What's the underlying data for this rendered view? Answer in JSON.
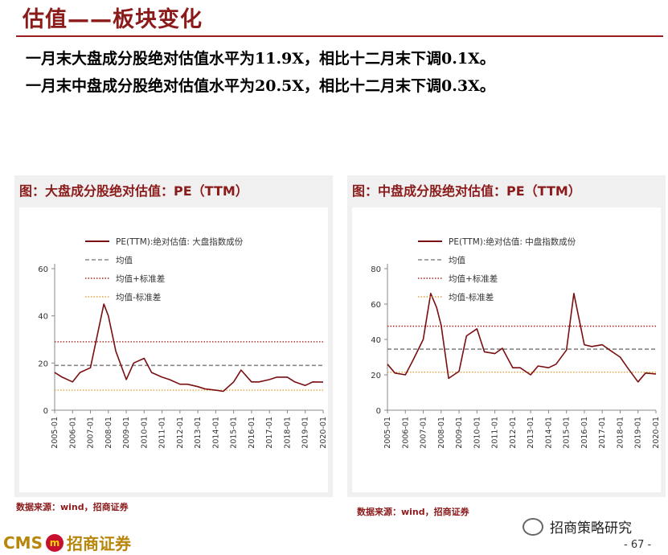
{
  "header": {
    "title": "估值——板块变化",
    "line1": "一月末大盘成分股绝对估值水平为11.9X，相比十二月末下调0.1X。",
    "line2": "一月末中盘成分股绝对估值水平为20.5X，相比十二月末下调0.3X。"
  },
  "colors": {
    "brand": "#8b1a1a",
    "pe_line": "#7a0f12",
    "mean_line": "#888888",
    "plus_sd": "#b22222",
    "minus_sd": "#e6a23c"
  },
  "charts": [
    {
      "panel_title": "图：大盘成分股绝对估值：PE（TTM）",
      "legend": [
        "PE(TTM):绝对估值: 大盘指数成份",
        "均值",
        "均值+标准差",
        "均值-标准差"
      ],
      "source": "数据来源：wind，招商证券"
    },
    {
      "panel_title": "图：中盘成分股绝对估值：PE（TTM）",
      "legend": [
        "PE(TTM):绝对估值: 中盘指数成份",
        "均值",
        "均值+标准差",
        "均值-标准差"
      ],
      "source": "数据来源：wind，招商证券"
    }
  ],
  "chart_data": [
    {
      "type": "line",
      "x": [
        "2005-01",
        "2005-06",
        "2006-01",
        "2006-06",
        "2007-01",
        "2007-06",
        "2007-10",
        "2008-01",
        "2008-06",
        "2009-01",
        "2009-06",
        "2010-01",
        "2010-06",
        "2011-01",
        "2011-06",
        "2012-01",
        "2012-06",
        "2013-01",
        "2013-06",
        "2014-01",
        "2014-06",
        "2015-01",
        "2015-06",
        "2016-01",
        "2016-06",
        "2017-01",
        "2017-06",
        "2018-01",
        "2018-06",
        "2019-01",
        "2019-06",
        "2020-01"
      ],
      "series": [
        {
          "name": "PE(TTM):绝对估值: 大盘指数成份",
          "values": [
            16,
            14,
            12,
            16,
            18,
            33,
            45,
            40,
            25,
            13,
            20,
            22,
            16,
            14,
            13,
            11,
            11,
            10,
            9,
            8.5,
            8,
            12,
            17,
            12,
            12,
            13,
            14,
            14,
            12,
            10.5,
            12,
            11.9
          ]
        },
        {
          "values": [
            19,
            19,
            19,
            19,
            19,
            19,
            19,
            19,
            19,
            19,
            19,
            19,
            19,
            19,
            19,
            19,
            19,
            19,
            19,
            19,
            19,
            19,
            19,
            19,
            19,
            19,
            19,
            19,
            19,
            19,
            19,
            19
          ]
        },
        {
          "values": [
            29,
            29,
            29,
            29,
            29,
            29,
            29,
            29,
            29,
            29,
            29,
            29,
            29,
            29,
            29,
            29,
            29,
            29,
            29,
            29,
            29,
            29,
            29,
            29,
            29,
            29,
            29,
            29,
            29,
            29,
            29,
            29
          ]
        },
        {
          "values": [
            8.5,
            8.5,
            8.5,
            8.5,
            8.5,
            8.5,
            8.5,
            8.5,
            8.5,
            8.5,
            8.5,
            8.5,
            8.5,
            8.5,
            8.5,
            8.5,
            8.5,
            8.5,
            8.5,
            8.5,
            8.5,
            8.5,
            8.5,
            8.5,
            8.5,
            8.5,
            8.5,
            8.5,
            8.5,
            8.5,
            8.5,
            8.5
          ]
        }
      ],
      "x_ticks": [
        "2005-01",
        "2006-01",
        "2007-01",
        "2008-01",
        "2009-01",
        "2010-01",
        "2011-01",
        "2012-01",
        "2013-01",
        "2014-01",
        "2015-01",
        "2016-01",
        "2017-01",
        "2018-01",
        "2019-01",
        "2020-01"
      ],
      "y_ticks": [
        0,
        20,
        40,
        60
      ],
      "ylim": [
        0,
        60
      ]
    },
    {
      "type": "line",
      "x": [
        "2005-01",
        "2005-06",
        "2006-01",
        "2006-06",
        "2007-01",
        "2007-06",
        "2007-10",
        "2008-01",
        "2008-06",
        "2009-01",
        "2009-06",
        "2010-01",
        "2010-06",
        "2011-01",
        "2011-06",
        "2012-01",
        "2012-06",
        "2013-01",
        "2013-06",
        "2014-01",
        "2014-06",
        "2015-01",
        "2015-06",
        "2016-01",
        "2016-06",
        "2017-01",
        "2017-06",
        "2018-01",
        "2018-06",
        "2019-01",
        "2019-06",
        "2020-01"
      ],
      "series": [
        {
          "name": "PE(TTM):绝对估值: 中盘指数成份",
          "values": [
            26,
            21,
            20,
            28,
            40,
            66,
            58,
            48,
            18,
            22,
            42,
            46,
            33,
            32,
            35,
            24,
            24,
            20,
            25,
            24,
            26,
            34,
            66,
            37,
            36,
            37,
            34,
            30,
            24,
            16,
            21,
            20.5
          ]
        },
        {
          "values": [
            34.5,
            34.5,
            34.5,
            34.5,
            34.5,
            34.5,
            34.5,
            34.5,
            34.5,
            34.5,
            34.5,
            34.5,
            34.5,
            34.5,
            34.5,
            34.5,
            34.5,
            34.5,
            34.5,
            34.5,
            34.5,
            34.5,
            34.5,
            34.5,
            34.5,
            34.5,
            34.5,
            34.5,
            34.5,
            34.5,
            34.5,
            34.5
          ]
        },
        {
          "values": [
            47.5,
            47.5,
            47.5,
            47.5,
            47.5,
            47.5,
            47.5,
            47.5,
            47.5,
            47.5,
            47.5,
            47.5,
            47.5,
            47.5,
            47.5,
            47.5,
            47.5,
            47.5,
            47.5,
            47.5,
            47.5,
            47.5,
            47.5,
            47.5,
            47.5,
            47.5,
            47.5,
            47.5,
            47.5,
            47.5,
            47.5,
            47.5
          ]
        },
        {
          "values": [
            21.5,
            21.5,
            21.5,
            21.5,
            21.5,
            21.5,
            21.5,
            21.5,
            21.5,
            21.5,
            21.5,
            21.5,
            21.5,
            21.5,
            21.5,
            21.5,
            21.5,
            21.5,
            21.5,
            21.5,
            21.5,
            21.5,
            21.5,
            21.5,
            21.5,
            21.5,
            21.5,
            21.5,
            21.5,
            21.5,
            21.5,
            21.5
          ]
        }
      ],
      "x_ticks": [
        "2005-01",
        "2006-01",
        "2007-01",
        "2008-01",
        "2009-01",
        "2010-01",
        "2011-01",
        "2012-01",
        "2013-01",
        "2014-01",
        "2015-01",
        "2016-01",
        "2017-01",
        "2018-01",
        "2019-01",
        "2020-01"
      ],
      "y_ticks": [
        0,
        20,
        40,
        60,
        80
      ],
      "ylim": [
        0,
        80
      ]
    }
  ],
  "footer": {
    "brand_left": "CMS",
    "brand_badge": "m",
    "brand_right": "招商证券",
    "wechat": "招商策略研究",
    "page": "- 67 -"
  }
}
